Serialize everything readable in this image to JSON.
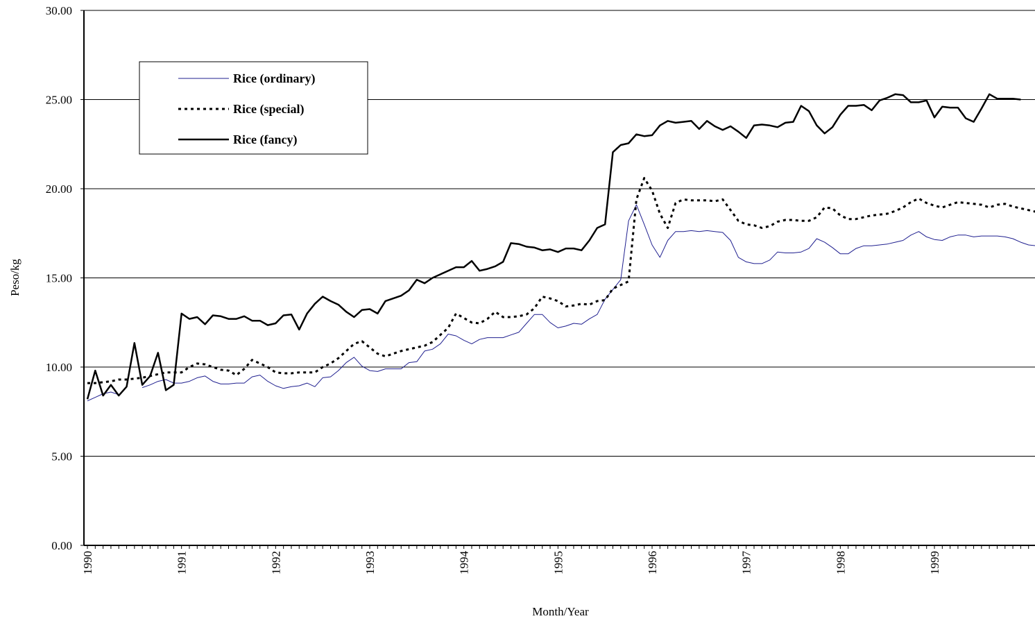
{
  "chart_data": {
    "type": "line",
    "title": "",
    "xlabel": "Month/Year",
    "ylabel": "Peso/kg",
    "ylim": [
      0,
      30
    ],
    "yticks": [
      "0.00",
      "5.00",
      "10.00",
      "15.00",
      "20.00",
      "25.00",
      "30.00"
    ],
    "xtick_labels": [
      "1990",
      "1991",
      "1992",
      "1993",
      "1994",
      "1995",
      "1996",
      "1997",
      "1998",
      "1999"
    ],
    "x_start": "1990-01",
    "x_frequency": "monthly",
    "grid": "horizontal",
    "legend_position": "top-left",
    "series": [
      {
        "name": "Rice (ordinary)",
        "color": "#1f1f8f",
        "style": "thin-solid",
        "values": [
          8.1,
          8.3,
          8.5,
          8.6,
          8.45,
          null,
          null,
          8.85,
          9.0,
          9.2,
          9.3,
          9.1,
          9.1,
          9.2,
          9.4,
          9.5,
          9.2,
          9.05,
          9.05,
          9.1,
          9.1,
          9.45,
          9.55,
          9.2,
          8.95,
          8.8,
          8.9,
          8.95,
          9.1,
          8.9,
          9.4,
          9.45,
          9.8,
          10.25,
          10.55,
          10.05,
          9.8,
          9.75,
          9.9,
          9.9,
          9.9,
          10.25,
          10.3,
          10.9,
          11.0,
          11.3,
          11.85,
          11.75,
          11.5,
          11.3,
          11.55,
          11.65,
          11.65,
          11.65,
          11.8,
          11.95,
          12.45,
          12.95,
          12.95,
          12.5,
          12.2,
          12.3,
          12.45,
          12.4,
          12.7,
          12.95,
          13.8,
          14.35,
          14.9,
          18.2,
          19.1,
          18.0,
          16.85,
          16.15,
          17.1,
          17.6,
          17.6,
          17.65,
          17.6,
          17.65,
          17.6,
          17.55,
          17.1,
          16.15,
          15.9,
          15.8,
          15.8,
          16.0,
          16.45,
          16.4,
          16.4,
          16.45,
          16.65,
          17.2,
          17.0,
          16.7,
          16.35,
          16.35,
          16.65,
          16.8,
          16.8,
          16.85,
          16.9,
          17.0,
          17.1,
          17.4,
          17.6,
          17.3,
          17.15,
          17.1,
          17.3,
          17.4,
          17.4,
          17.3,
          17.35,
          17.35,
          17.35,
          17.3,
          17.2,
          17.0,
          16.85,
          16.8
        ]
      },
      {
        "name": "Rice (special)",
        "color": "#000000",
        "style": "dotted",
        "values": [
          9.1,
          9.1,
          9.15,
          9.2,
          9.3,
          9.3,
          9.35,
          9.4,
          9.5,
          9.6,
          9.7,
          9.7,
          9.7,
          10.0,
          10.2,
          10.15,
          10.0,
          9.85,
          9.8,
          9.55,
          9.9,
          10.4,
          10.2,
          10.0,
          9.7,
          9.65,
          9.65,
          9.7,
          9.7,
          9.7,
          10.0,
          10.2,
          10.5,
          10.9,
          11.3,
          11.45,
          11.1,
          10.75,
          10.6,
          10.75,
          10.9,
          11.0,
          11.1,
          11.2,
          11.4,
          11.8,
          12.2,
          13.0,
          12.75,
          12.5,
          12.45,
          12.7,
          13.1,
          12.8,
          12.8,
          12.85,
          12.95,
          13.3,
          13.95,
          13.85,
          13.7,
          13.4,
          13.45,
          13.55,
          13.5,
          13.7,
          13.75,
          14.4,
          14.6,
          14.8,
          19.4,
          20.6,
          19.9,
          18.6,
          17.8,
          19.2,
          19.4,
          19.35,
          19.35,
          19.35,
          19.3,
          19.4,
          18.8,
          18.2,
          18.0,
          17.95,
          17.8,
          17.9,
          18.15,
          18.25,
          18.25,
          18.2,
          18.2,
          18.4,
          18.95,
          18.9,
          18.5,
          18.3,
          18.3,
          18.4,
          18.5,
          18.55,
          18.6,
          18.75,
          18.95,
          19.25,
          19.45,
          19.2,
          19.05,
          18.95,
          19.1,
          19.25,
          19.2,
          19.15,
          19.1,
          18.95,
          19.1,
          19.15,
          19.0,
          18.9,
          18.8,
          18.7
        ]
      },
      {
        "name": "Rice (fancy)",
        "color": "#000000",
        "style": "thick-solid",
        "values": [
          8.2,
          9.8,
          8.4,
          9.0,
          8.4,
          8.9,
          11.35,
          9.0,
          9.5,
          10.8,
          8.7,
          9.0,
          13.0,
          12.7,
          12.8,
          12.4,
          12.9,
          12.85,
          12.7,
          12.7,
          12.85,
          12.6,
          12.6,
          12.35,
          12.45,
          12.9,
          12.95,
          12.1,
          13.0,
          13.55,
          13.95,
          13.7,
          13.5,
          13.1,
          12.8,
          13.2,
          13.25,
          13.0,
          13.7,
          13.85,
          14.0,
          14.3,
          14.9,
          14.7,
          15.0,
          15.2,
          15.4,
          15.6,
          15.6,
          15.95,
          15.4,
          15.5,
          15.65,
          15.9,
          16.95,
          16.9,
          16.75,
          16.7,
          16.55,
          16.6,
          16.45,
          16.65,
          16.65,
          16.55,
          17.1,
          17.8,
          18.0,
          22.05,
          22.45,
          22.55,
          23.05,
          22.95,
          23.0,
          23.55,
          23.8,
          23.7,
          23.75,
          23.8,
          23.35,
          23.8,
          23.5,
          23.3,
          23.5,
          23.2,
          22.85,
          23.55,
          23.6,
          23.55,
          23.45,
          23.7,
          23.75,
          24.65,
          24.35,
          23.55,
          23.1,
          23.45,
          24.15,
          24.65,
          24.65,
          24.7,
          24.4,
          24.95,
          25.1,
          25.3,
          25.25,
          24.85,
          24.85,
          24.95,
          24.0,
          24.6,
          24.55,
          24.55,
          23.95,
          23.75,
          24.5,
          25.3,
          25.05,
          25.05,
          25.05,
          25.0
        ]
      }
    ]
  }
}
